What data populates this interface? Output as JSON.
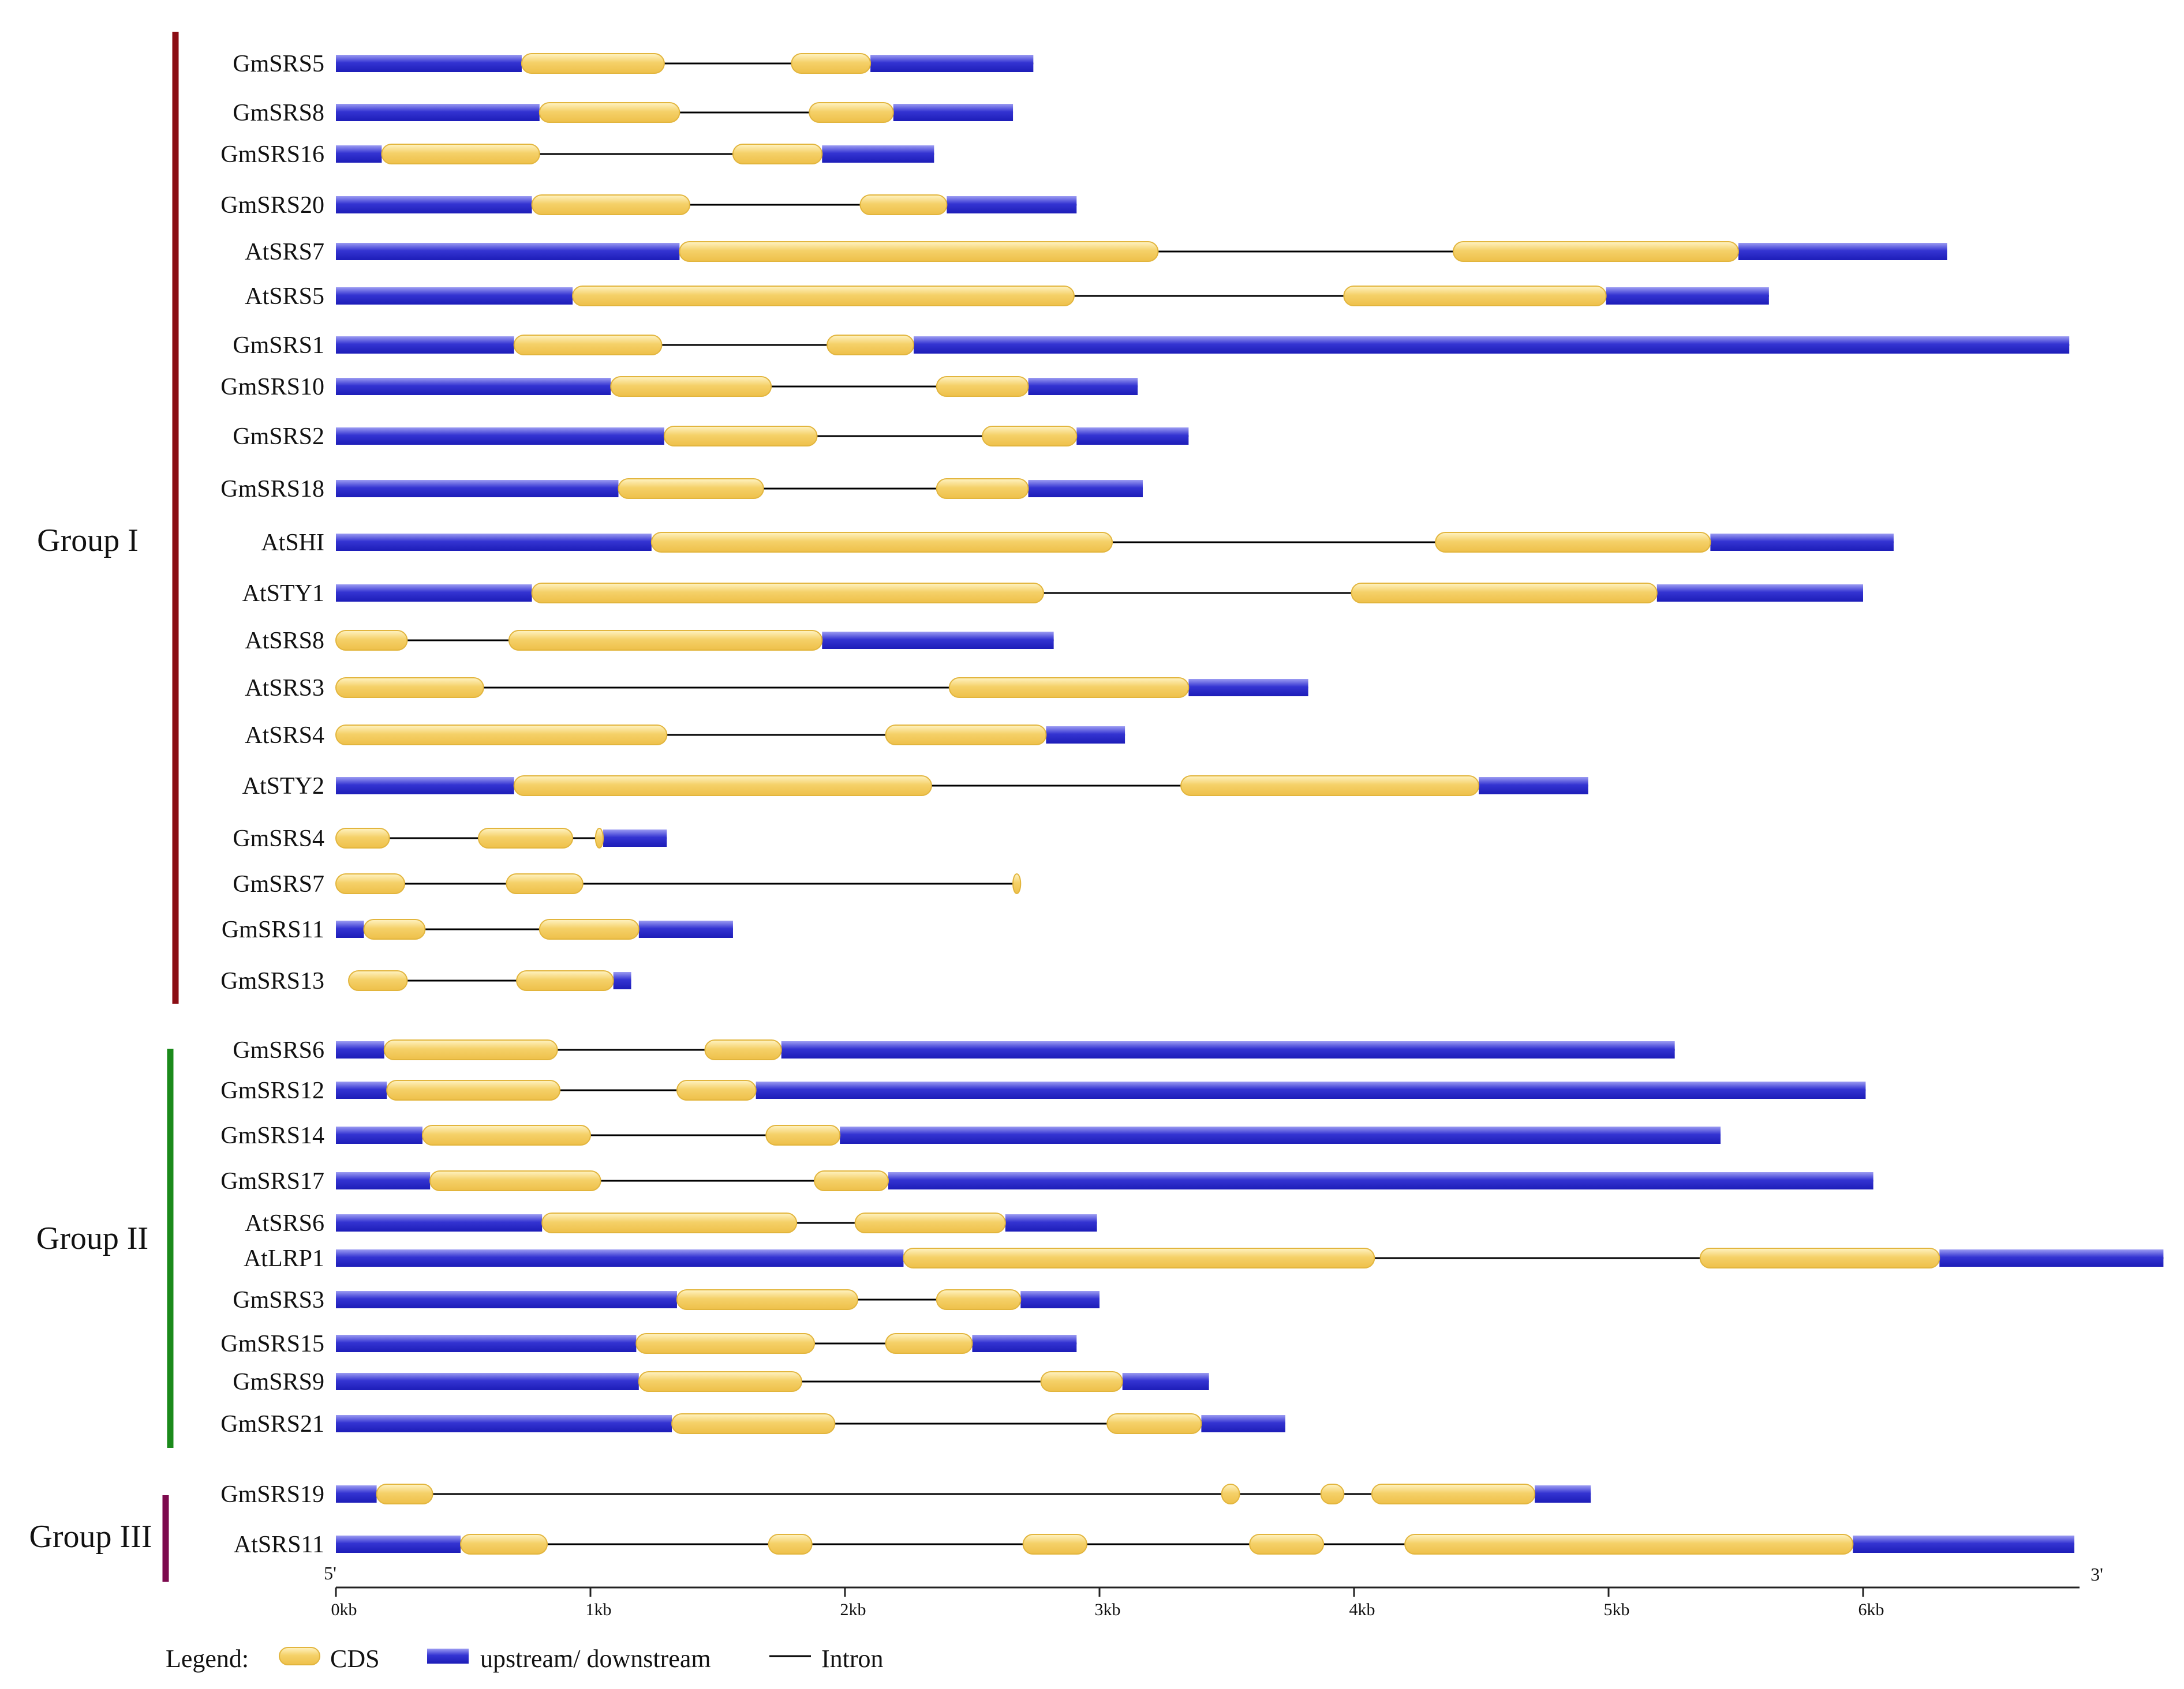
{
  "colors": {
    "cds": "#f5d169",
    "cds_edge": "#e2b53d",
    "utr": "#3434d2",
    "intron": "#000000",
    "group_I": "#8b0d14",
    "group_II": "#1b8a1b",
    "group_III": "#7d0a4e"
  },
  "axis": {
    "five_prime": "5'",
    "three_prime": "3'",
    "unit_kb_per_tick": 1,
    "ticks": [
      {
        "value": 0,
        "label": "0kb"
      },
      {
        "value": 1,
        "label": "1kb"
      },
      {
        "value": 2,
        "label": "2kb"
      },
      {
        "value": 3,
        "label": "3kb"
      },
      {
        "value": 4,
        "label": "4kb"
      },
      {
        "value": 5,
        "label": "5kb"
      },
      {
        "value": 6,
        "label": "6kb"
      }
    ]
  },
  "legend": {
    "title": "Legend:",
    "cds": "CDS",
    "utr": "upstream/ downstream",
    "intron": "Intron"
  },
  "groups": [
    {
      "id": "g1",
      "label": "Group I",
      "color_key": "group_I",
      "first": 0,
      "last": 19
    },
    {
      "id": "g2",
      "label": "Group II",
      "color_key": "group_II",
      "first": 20,
      "last": 29
    },
    {
      "id": "g3",
      "label": "Group III",
      "color_key": "group_III",
      "first": 30,
      "last": 31
    }
  ],
  "genes": [
    {
      "name": "GmSRS5",
      "length": 2.74,
      "utr": [
        [
          0,
          0.73
        ],
        [
          2.1,
          2.74
        ]
      ],
      "cds": [
        [
          0.73,
          1.29
        ],
        [
          1.79,
          2.1
        ]
      ]
    },
    {
      "name": "GmSRS8",
      "length": 2.66,
      "utr": [
        [
          0,
          0.8
        ],
        [
          2.19,
          2.66
        ]
      ],
      "cds": [
        [
          0.8,
          1.35
        ],
        [
          1.86,
          2.19
        ]
      ]
    },
    {
      "name": "GmSRS16",
      "length": 2.35,
      "utr": [
        [
          0,
          0.18
        ],
        [
          1.91,
          2.35
        ]
      ],
      "cds": [
        [
          0.18,
          0.8
        ],
        [
          1.56,
          1.91
        ]
      ]
    },
    {
      "name": "GmSRS20",
      "length": 2.91,
      "utr": [
        [
          0,
          0.77
        ],
        [
          2.4,
          2.91
        ]
      ],
      "cds": [
        [
          0.77,
          1.39
        ],
        [
          2.06,
          2.4
        ]
      ]
    },
    {
      "name": "AtSRS7",
      "length": 6.33,
      "utr": [
        [
          0,
          1.35
        ],
        [
          5.51,
          6.33
        ]
      ],
      "cds": [
        [
          1.35,
          3.23
        ],
        [
          4.39,
          5.51
        ]
      ]
    },
    {
      "name": "AtSRS5",
      "length": 5.63,
      "utr": [
        [
          0,
          0.93
        ],
        [
          4.99,
          5.63
        ]
      ],
      "cds": [
        [
          0.93,
          2.9
        ],
        [
          3.96,
          4.99
        ]
      ]
    },
    {
      "name": "GmSRS1",
      "length": 6.81,
      "utr": [
        [
          0,
          0.7
        ],
        [
          2.27,
          6.81
        ]
      ],
      "cds": [
        [
          0.7,
          1.28
        ],
        [
          1.93,
          2.27
        ]
      ]
    },
    {
      "name": "GmSRS10",
      "length": 3.15,
      "utr": [
        [
          0,
          1.08
        ],
        [
          2.72,
          3.15
        ]
      ],
      "cds": [
        [
          1.08,
          1.71
        ],
        [
          2.36,
          2.72
        ]
      ]
    },
    {
      "name": "GmSRS2",
      "length": 3.35,
      "utr": [
        [
          0,
          1.29
        ],
        [
          2.91,
          3.35
        ]
      ],
      "cds": [
        [
          1.29,
          1.89
        ],
        [
          2.54,
          2.91
        ]
      ]
    },
    {
      "name": "GmSRS18",
      "length": 3.17,
      "utr": [
        [
          0,
          1.11
        ],
        [
          2.72,
          3.17
        ]
      ],
      "cds": [
        [
          1.11,
          1.68
        ],
        [
          2.36,
          2.72
        ]
      ]
    },
    {
      "name": "AtSHI",
      "length": 6.12,
      "utr": [
        [
          0,
          1.24
        ],
        [
          5.4,
          6.12
        ]
      ],
      "cds": [
        [
          1.24,
          3.05
        ],
        [
          4.32,
          5.4
        ]
      ]
    },
    {
      "name": "AtSTY1",
      "length": 6.0,
      "utr": [
        [
          0,
          0.77
        ],
        [
          5.19,
          6.0
        ]
      ],
      "cds": [
        [
          0.77,
          2.78
        ],
        [
          3.99,
          5.19
        ]
      ]
    },
    {
      "name": "AtSRS8",
      "length": 2.82,
      "utr": [
        [
          1.91,
          2.82
        ]
      ],
      "cds": [
        [
          0,
          0.28
        ],
        [
          0.68,
          1.91
        ]
      ]
    },
    {
      "name": "AtSRS3",
      "length": 3.82,
      "utr": [
        [
          3.35,
          3.82
        ]
      ],
      "cds": [
        [
          0,
          0.58
        ],
        [
          2.41,
          3.35
        ]
      ]
    },
    {
      "name": "AtSRS4",
      "length": 3.1,
      "utr": [
        [
          2.79,
          3.1
        ]
      ],
      "cds": [
        [
          0,
          1.3
        ],
        [
          2.16,
          2.79
        ]
      ]
    },
    {
      "name": "AtSTY2",
      "length": 4.92,
      "utr": [
        [
          0,
          0.7
        ],
        [
          4.49,
          4.92
        ]
      ],
      "cds": [
        [
          0.7,
          2.34
        ],
        [
          3.32,
          4.49
        ]
      ]
    },
    {
      "name": "GmSRS4",
      "length": 1.3,
      "utr": [
        [
          1.05,
          1.3
        ]
      ],
      "cds": [
        [
          0,
          0.21
        ],
        [
          0.56,
          0.93
        ],
        [
          1.02,
          1.05
        ]
      ]
    },
    {
      "name": "GmSRS7",
      "length": 2.69,
      "utr": [],
      "cds": [
        [
          0,
          0.27
        ],
        [
          0.67,
          0.97
        ],
        [
          2.66,
          2.69
        ]
      ]
    },
    {
      "name": "GmSRS11",
      "length": 1.56,
      "utr": [
        [
          0,
          0.11
        ],
        [
          1.19,
          1.56
        ]
      ],
      "cds": [
        [
          0.11,
          0.35
        ],
        [
          0.8,
          1.19
        ]
      ]
    },
    {
      "name": "GmSRS13",
      "length": 1.16,
      "utr": [
        [
          1.09,
          1.16
        ]
      ],
      "cds": [
        [
          0.05,
          0.28
        ],
        [
          0.71,
          1.09
        ]
      ]
    },
    {
      "name": "GmSRS6",
      "length": 5.26,
      "utr": [
        [
          0,
          0.19
        ],
        [
          1.75,
          5.26
        ]
      ],
      "cds": [
        [
          0.19,
          0.87
        ],
        [
          1.45,
          1.75
        ]
      ]
    },
    {
      "name": "GmSRS12",
      "length": 6.01,
      "utr": [
        [
          0,
          0.2
        ],
        [
          1.65,
          6.01
        ]
      ],
      "cds": [
        [
          0.2,
          0.88
        ],
        [
          1.34,
          1.65
        ]
      ]
    },
    {
      "name": "GmSRS14",
      "length": 5.44,
      "utr": [
        [
          0,
          0.34
        ],
        [
          1.98,
          5.44
        ]
      ],
      "cds": [
        [
          0.34,
          1.0
        ],
        [
          1.69,
          1.98
        ]
      ]
    },
    {
      "name": "GmSRS17",
      "length": 6.04,
      "utr": [
        [
          0,
          0.37
        ],
        [
          2.17,
          6.04
        ]
      ],
      "cds": [
        [
          0.37,
          1.04
        ],
        [
          1.88,
          2.17
        ]
      ]
    },
    {
      "name": "AtSRS6",
      "length": 2.99,
      "utr": [
        [
          0,
          0.81
        ],
        [
          2.63,
          2.99
        ]
      ],
      "cds": [
        [
          0.81,
          1.81
        ],
        [
          2.04,
          2.63
        ]
      ]
    },
    {
      "name": "AtLRP1",
      "length": 7.18,
      "utr": [
        [
          0,
          2.23
        ],
        [
          6.3,
          7.18
        ]
      ],
      "cds": [
        [
          2.23,
          4.08
        ],
        [
          5.36,
          6.3
        ]
      ]
    },
    {
      "name": "GmSRS3",
      "length": 3.0,
      "utr": [
        [
          0,
          1.34
        ],
        [
          2.69,
          3.0
        ]
      ],
      "cds": [
        [
          1.34,
          2.05
        ],
        [
          2.36,
          2.69
        ]
      ]
    },
    {
      "name": "GmSRS15",
      "length": 2.91,
      "utr": [
        [
          0,
          1.18
        ],
        [
          2.5,
          2.91
        ]
      ],
      "cds": [
        [
          1.18,
          1.88
        ],
        [
          2.16,
          2.5
        ]
      ]
    },
    {
      "name": "GmSRS9",
      "length": 3.43,
      "utr": [
        [
          0,
          1.19
        ],
        [
          3.09,
          3.43
        ]
      ],
      "cds": [
        [
          1.19,
          1.83
        ],
        [
          2.77,
          3.09
        ]
      ]
    },
    {
      "name": "GmSRS21",
      "length": 3.73,
      "utr": [
        [
          0,
          1.32
        ],
        [
          3.4,
          3.73
        ]
      ],
      "cds": [
        [
          1.32,
          1.96
        ],
        [
          3.03,
          3.4
        ]
      ]
    },
    {
      "name": "GmSRS19",
      "length": 4.93,
      "utr": [
        [
          0,
          0.16
        ],
        [
          4.71,
          4.93
        ]
      ],
      "cds": [
        [
          0.16,
          0.38
        ],
        [
          3.48,
          3.55
        ],
        [
          3.87,
          3.96
        ],
        [
          4.07,
          4.71
        ]
      ]
    },
    {
      "name": "AtSRS11",
      "length": 6.83,
      "utr": [
        [
          0,
          0.49
        ],
        [
          5.96,
          6.83
        ]
      ],
      "cds": [
        [
          0.49,
          0.83
        ],
        [
          1.7,
          1.87
        ],
        [
          2.7,
          2.95
        ],
        [
          3.59,
          3.88
        ],
        [
          4.2,
          5.96
        ]
      ]
    }
  ]
}
